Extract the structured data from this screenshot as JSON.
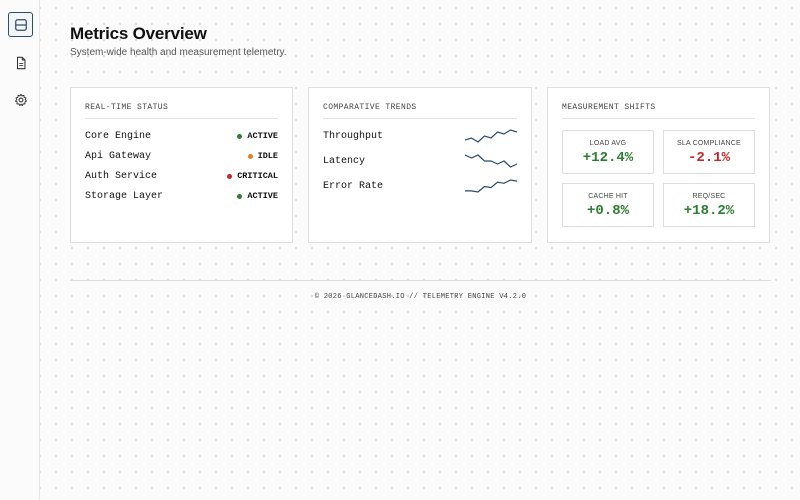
{
  "sidebar": {
    "items": [
      {
        "icon": "panel-icon",
        "active": true
      },
      {
        "icon": "document-icon",
        "active": false
      },
      {
        "icon": "gear-icon",
        "active": false
      }
    ]
  },
  "header": {
    "title": "Metrics Overview",
    "subtitle": "System-wide health and measurement telemetry."
  },
  "status_card": {
    "title": "REAL-TIME STATUS",
    "rows": [
      {
        "name": "Core Engine",
        "status": "ACTIVE",
        "color": "#2e7d32"
      },
      {
        "name": "Api Gateway",
        "status": "IDLE",
        "color": "#e67e22"
      },
      {
        "name": "Auth Service",
        "status": "CRITICAL",
        "color": "#c62828"
      },
      {
        "name": "Storage Layer",
        "status": "ACTIVE",
        "color": "#2e7d32"
      }
    ]
  },
  "trends_card": {
    "title": "COMPARATIVE TRENDS",
    "rows": [
      {
        "name": "Throughput",
        "series": [
          3,
          4,
          2,
          5,
          4,
          7,
          6,
          8,
          7
        ]
      },
      {
        "name": "Latency",
        "series": [
          7,
          6,
          7,
          5,
          5,
          4,
          5,
          3,
          4
        ]
      },
      {
        "name": "Error Rate",
        "series": [
          2,
          2,
          1.8,
          2.8,
          2.6,
          3.6,
          3.4,
          4,
          3.8
        ]
      }
    ],
    "line_color": "#2a4a6b"
  },
  "shifts_card": {
    "title": "MEASUREMENT SHIFTS",
    "metrics": [
      {
        "label": "LOAD AVG",
        "value": "+12.4%",
        "color": "#2e7d32"
      },
      {
        "label": "SLA COMPLIANCE",
        "value": "-2.1%",
        "color": "#c62828"
      },
      {
        "label": "CACHE HIT",
        "value": "+0.8%",
        "color": "#2e7d32"
      },
      {
        "label": "REQ/SEC",
        "value": "+18.2%",
        "color": "#2e7d32"
      }
    ]
  },
  "footer": {
    "text": "© 2026 GLANCEDASH.IO // TELEMETRY ENGINE V4.2.0"
  }
}
